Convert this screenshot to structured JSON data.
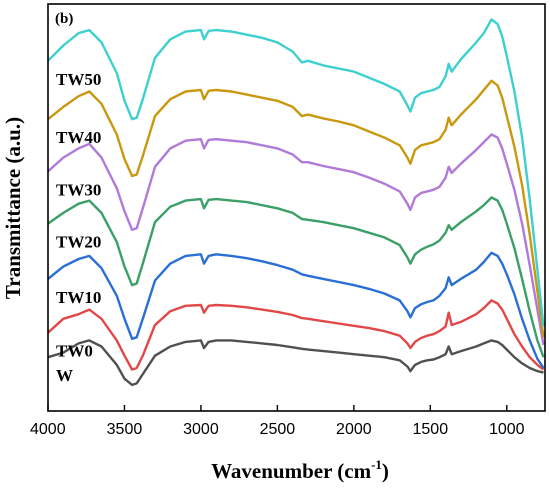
{
  "chart_data": {
    "type": "line",
    "panel_label": "(b)",
    "xlabel_main": "Wavenumber (cm",
    "xlabel_sup": "-1",
    "xlabel_end": ")",
    "ylabel": "Transmittance (a.u.)",
    "xlim": [
      4000,
      750
    ],
    "x_reversed": true,
    "xticks": [
      4000,
      3500,
      3000,
      2500,
      2000,
      1500,
      1000
    ],
    "xtick_labels": [
      "4000",
      "3500",
      "3000",
      "2500",
      "2000",
      "1500",
      "1000"
    ],
    "y_ticks_shown": false,
    "grid": false,
    "series": [
      {
        "name": "W",
        "color": "#505050",
        "x": [
          4000,
          3900,
          3800,
          3730,
          3650,
          3550,
          3500,
          3450,
          3420,
          3380,
          3300,
          3200,
          3100,
          3000,
          2980,
          2950,
          2900,
          2800,
          2700,
          2600,
          2500,
          2400,
          2340,
          2300,
          2200,
          2100,
          2000,
          1900,
          1800,
          1700,
          1650,
          1630,
          1600,
          1560,
          1520,
          1480,
          1440,
          1400,
          1380,
          1360,
          1300,
          1200,
          1150,
          1100,
          1060,
          1030,
          1000,
          950,
          900,
          850,
          800,
          760
        ],
        "y": [
          0.5,
          0.8,
          1.4,
          1.6,
          1.2,
          0.0,
          -0.9,
          -1.3,
          -1.2,
          -0.6,
          0.6,
          1.2,
          1.5,
          1.6,
          1.1,
          1.5,
          1.6,
          1.6,
          1.5,
          1.4,
          1.3,
          1.15,
          1.05,
          1.0,
          0.9,
          0.8,
          0.7,
          0.6,
          0.5,
          0.3,
          -0.1,
          -0.4,
          0.0,
          0.2,
          0.3,
          0.35,
          0.5,
          0.7,
          1.2,
          0.7,
          0.9,
          1.2,
          1.4,
          1.6,
          1.5,
          1.3,
          1.0,
          0.5,
          0.1,
          -0.2,
          -0.4,
          -0.5
        ]
      },
      {
        "name": "TW0",
        "color": "#e14848",
        "x": [
          4000,
          3900,
          3800,
          3730,
          3650,
          3550,
          3500,
          3450,
          3420,
          3380,
          3300,
          3200,
          3100,
          3000,
          2980,
          2950,
          2900,
          2800,
          2700,
          2600,
          2500,
          2400,
          2340,
          2300,
          2200,
          2100,
          2000,
          1900,
          1800,
          1700,
          1650,
          1630,
          1600,
          1560,
          1520,
          1480,
          1440,
          1400,
          1380,
          1360,
          1300,
          1200,
          1150,
          1100,
          1060,
          1030,
          1000,
          950,
          900,
          850,
          800,
          760
        ],
        "y": [
          2.1,
          3.0,
          3.3,
          3.6,
          3.0,
          1.6,
          0.6,
          -0.3,
          -0.2,
          0.6,
          2.6,
          3.5,
          3.85,
          3.9,
          3.4,
          3.85,
          3.9,
          3.85,
          3.75,
          3.6,
          3.45,
          3.25,
          3.05,
          3.0,
          2.85,
          2.7,
          2.55,
          2.4,
          2.2,
          1.9,
          1.4,
          1.1,
          1.5,
          1.75,
          1.9,
          2.0,
          2.2,
          2.5,
          3.4,
          2.6,
          2.8,
          3.3,
          3.7,
          4.2,
          4.0,
          3.6,
          3.0,
          2.0,
          1.2,
          0.5,
          0.0,
          -0.3
        ]
      },
      {
        "name": "TW10",
        "color": "#2a6fd4",
        "x": [
          4000,
          3900,
          3800,
          3730,
          3650,
          3550,
          3500,
          3450,
          3420,
          3380,
          3300,
          3200,
          3100,
          3000,
          2980,
          2950,
          2900,
          2800,
          2700,
          2600,
          2500,
          2400,
          2340,
          2300,
          2200,
          2100,
          2000,
          1900,
          1800,
          1700,
          1650,
          1630,
          1600,
          1560,
          1520,
          1480,
          1440,
          1400,
          1380,
          1360,
          1300,
          1200,
          1150,
          1100,
          1060,
          1030,
          1000,
          950,
          900,
          850,
          800,
          760
        ],
        "y": [
          5.6,
          6.4,
          6.9,
          7.1,
          6.3,
          4.5,
          3.0,
          1.7,
          1.8,
          3.0,
          5.5,
          6.6,
          7.1,
          7.2,
          6.6,
          7.1,
          7.2,
          7.1,
          6.95,
          6.75,
          6.5,
          6.2,
          5.9,
          5.8,
          5.6,
          5.4,
          5.2,
          4.95,
          4.65,
          4.2,
          3.5,
          3.1,
          3.7,
          3.95,
          4.1,
          4.2,
          4.5,
          5.0,
          5.7,
          5.2,
          5.6,
          6.2,
          6.7,
          7.3,
          7.1,
          6.6,
          5.9,
          4.6,
          3.0,
          1.6,
          0.4,
          -0.2
        ]
      },
      {
        "name": "TW20",
        "color": "#3b9f68",
        "x": [
          4000,
          3900,
          3800,
          3730,
          3650,
          3550,
          3500,
          3450,
          3420,
          3380,
          3300,
          3200,
          3100,
          3000,
          2980,
          2950,
          2900,
          2800,
          2700,
          2600,
          2500,
          2400,
          2340,
          2300,
          2200,
          2100,
          2000,
          1900,
          1800,
          1700,
          1650,
          1630,
          1600,
          1560,
          1520,
          1480,
          1440,
          1400,
          1380,
          1360,
          1300,
          1200,
          1150,
          1100,
          1060,
          1030,
          1000,
          950,
          900,
          850,
          800,
          760
        ],
        "y": [
          9.2,
          9.9,
          10.5,
          10.7,
          9.9,
          8.0,
          6.4,
          5.2,
          5.3,
          6.6,
          9.3,
          10.3,
          10.7,
          10.8,
          10.2,
          10.75,
          10.8,
          10.7,
          10.6,
          10.4,
          10.2,
          9.9,
          9.5,
          9.45,
          9.3,
          9.1,
          8.9,
          8.6,
          8.3,
          7.8,
          7.0,
          6.6,
          7.2,
          7.5,
          7.7,
          7.85,
          8.1,
          8.6,
          9.1,
          8.8,
          9.3,
          10.0,
          10.4,
          10.9,
          10.7,
          10.1,
          9.2,
          7.6,
          5.6,
          3.5,
          1.6,
          0.5
        ]
      },
      {
        "name": "TW30",
        "color": "#b07ad8",
        "x": [
          4000,
          3900,
          3800,
          3730,
          3650,
          3550,
          3500,
          3450,
          3420,
          3380,
          3300,
          3200,
          3100,
          3000,
          2980,
          2950,
          2900,
          2800,
          2700,
          2600,
          2500,
          2400,
          2340,
          2300,
          2200,
          2100,
          2000,
          1900,
          1800,
          1700,
          1650,
          1630,
          1600,
          1560,
          1520,
          1480,
          1440,
          1400,
          1380,
          1360,
          1300,
          1200,
          1150,
          1100,
          1060,
          1030,
          1000,
          950,
          900,
          850,
          800,
          760
        ],
        "y": [
          12.6,
          13.5,
          14.1,
          14.4,
          13.5,
          11.5,
          10.0,
          8.8,
          8.9,
          10.2,
          12.9,
          14.1,
          14.6,
          14.7,
          14.1,
          14.65,
          14.7,
          14.6,
          14.5,
          14.3,
          14.1,
          13.7,
          13.2,
          13.2,
          12.95,
          12.75,
          12.55,
          12.2,
          11.8,
          11.3,
          10.5,
          10.1,
          10.9,
          11.2,
          11.3,
          11.4,
          11.6,
          12.2,
          12.9,
          12.5,
          13.1,
          14.0,
          14.5,
          15.0,
          14.8,
          14.1,
          13.1,
          11.4,
          9.2,
          6.5,
          3.6,
          1.3
        ]
      },
      {
        "name": "TW40",
        "color": "#c9980f",
        "x": [
          4000,
          3900,
          3800,
          3730,
          3650,
          3550,
          3500,
          3450,
          3420,
          3380,
          3300,
          3200,
          3100,
          3000,
          2980,
          2950,
          2900,
          2800,
          2700,
          2600,
          2500,
          2400,
          2340,
          2300,
          2200,
          2100,
          2000,
          1900,
          1800,
          1700,
          1650,
          1630,
          1600,
          1560,
          1520,
          1480,
          1440,
          1400,
          1380,
          1360,
          1300,
          1200,
          1150,
          1100,
          1060,
          1030,
          1000,
          950,
          900,
          850,
          800,
          760
        ],
        "y": [
          16.0,
          16.8,
          17.5,
          17.8,
          17.0,
          15.0,
          13.4,
          12.3,
          12.4,
          13.6,
          16.2,
          17.3,
          17.8,
          17.9,
          17.3,
          17.85,
          17.9,
          17.8,
          17.6,
          17.4,
          17.2,
          16.8,
          16.2,
          16.3,
          16.05,
          15.85,
          15.6,
          15.2,
          14.8,
          14.3,
          13.5,
          13.1,
          14.0,
          14.3,
          14.4,
          14.5,
          14.7,
          15.3,
          16.1,
          15.6,
          16.3,
          17.3,
          17.9,
          18.5,
          18.2,
          17.4,
          16.2,
          14.2,
          11.7,
          8.5,
          4.8,
          1.8
        ]
      },
      {
        "name": "TW50",
        "color": "#3ecfcf",
        "x": [
          4000,
          3900,
          3800,
          3730,
          3650,
          3550,
          3500,
          3450,
          3420,
          3380,
          3300,
          3200,
          3100,
          3000,
          2980,
          2950,
          2900,
          2800,
          2700,
          2600,
          2500,
          2400,
          2340,
          2300,
          2200,
          2100,
          2000,
          1900,
          1800,
          1700,
          1650,
          1630,
          1600,
          1560,
          1520,
          1480,
          1440,
          1400,
          1380,
          1360,
          1300,
          1200,
          1150,
          1100,
          1060,
          1030,
          1000,
          950,
          900,
          850,
          800,
          760
        ],
        "y": [
          19.8,
          20.8,
          21.6,
          21.8,
          21.0,
          19.0,
          17.2,
          16.0,
          16.1,
          17.3,
          20.0,
          21.2,
          21.7,
          21.8,
          21.2,
          21.75,
          21.8,
          21.7,
          21.5,
          21.3,
          21.0,
          20.4,
          19.7,
          19.8,
          19.5,
          19.3,
          19.1,
          18.7,
          18.3,
          17.8,
          16.9,
          16.5,
          17.4,
          17.7,
          17.8,
          17.9,
          18.1,
          18.8,
          19.6,
          19.1,
          19.9,
          21.0,
          21.6,
          22.5,
          22.2,
          21.4,
          20.1,
          17.8,
          14.8,
          10.8,
          6.2,
          2.5
        ]
      }
    ]
  }
}
